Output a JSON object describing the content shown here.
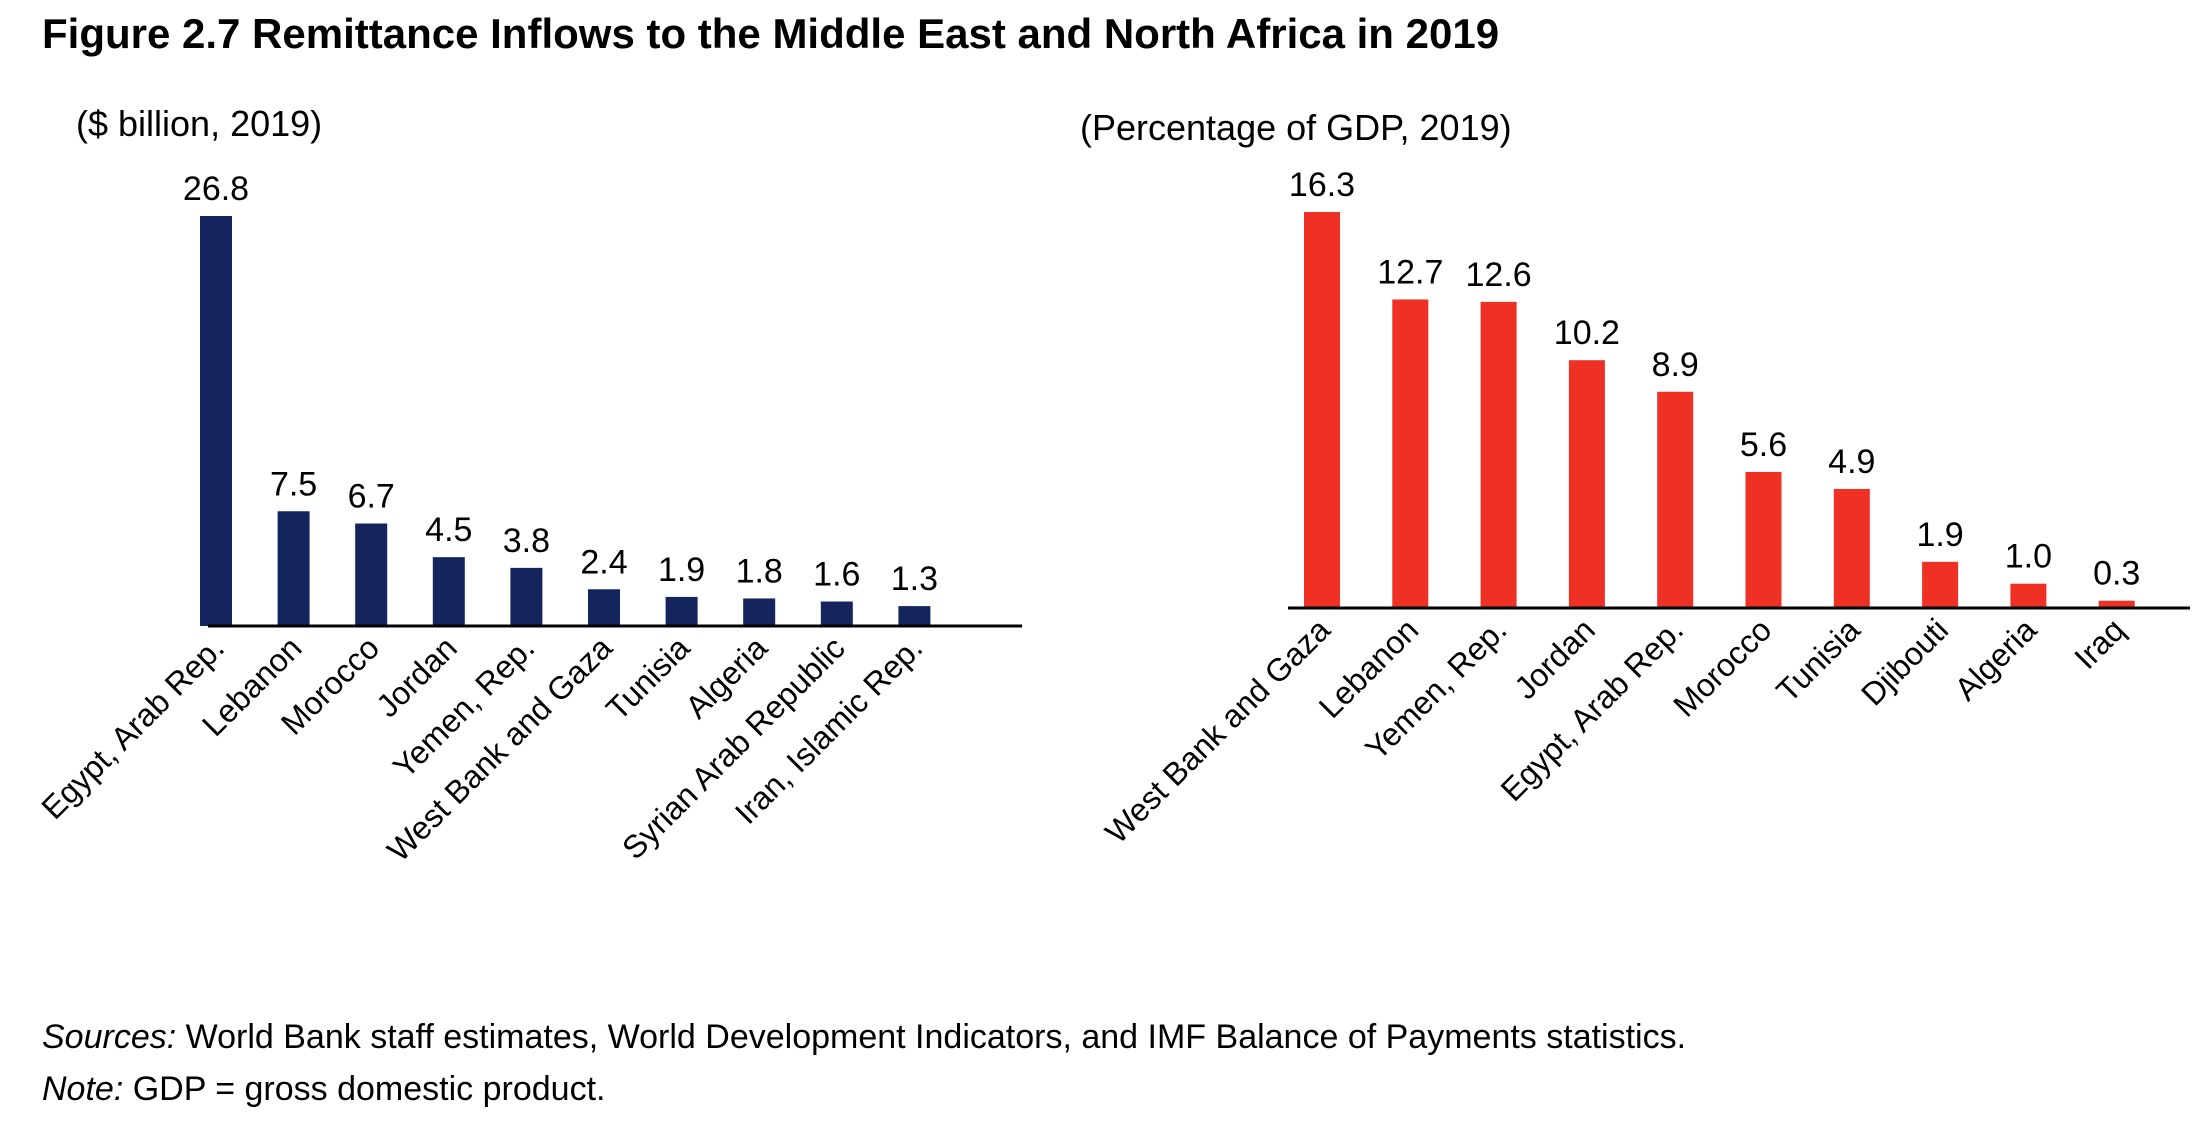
{
  "figure": {
    "title": "Figure 2.7 Remittance Inflows to the Middle East and North Africa in 2019",
    "sources_label": "Sources:",
    "sources_text": " World Bank staff estimates, World Development Indicators, and IMF Balance of Payments statistics.",
    "note_label": "Note:",
    "note_text": " GDP = gross domestic product."
  },
  "chart_data": [
    {
      "type": "bar",
      "subtitle": "($ billion, 2019)",
      "categories": [
        "Egypt, Arab Rep.",
        "Lebanon",
        "Morocco",
        "Jordan",
        "Yemen, Rep.",
        "West Bank and Gaza",
        "Tunisia",
        "Algeria",
        "Syrian Arab Republic",
        "Iran, Islamic Rep."
      ],
      "values": [
        26.8,
        7.5,
        6.7,
        4.5,
        3.8,
        2.4,
        1.9,
        1.8,
        1.6,
        1.3
      ],
      "value_labels": [
        "26.8",
        "7.5",
        "6.7",
        "4.5",
        "3.8",
        "2.4",
        "1.9",
        "1.8",
        "1.6",
        "1.3"
      ],
      "color": "#14245c",
      "ylim": [
        0,
        26.8
      ],
      "grid": false
    },
    {
      "type": "bar",
      "subtitle": "(Percentage of GDP, 2019)",
      "categories": [
        "West Bank and Gaza",
        "Lebanon",
        "Yemen, Rep.",
        "Jordan",
        "Egypt, Arab Rep.",
        "Morocco",
        "Tunisia",
        "Djibouti",
        "Algeria",
        "Iraq"
      ],
      "values": [
        16.3,
        12.7,
        12.6,
        10.2,
        8.9,
        5.6,
        4.9,
        1.9,
        1.0,
        0.3
      ],
      "value_labels": [
        "16.3",
        "12.7",
        "12.6",
        "10.2",
        "8.9",
        "5.6",
        "4.9",
        "1.9",
        "1.0",
        "0.3"
      ],
      "color": "#ee3124",
      "ylim": [
        0,
        16.3
      ],
      "grid": false
    }
  ]
}
